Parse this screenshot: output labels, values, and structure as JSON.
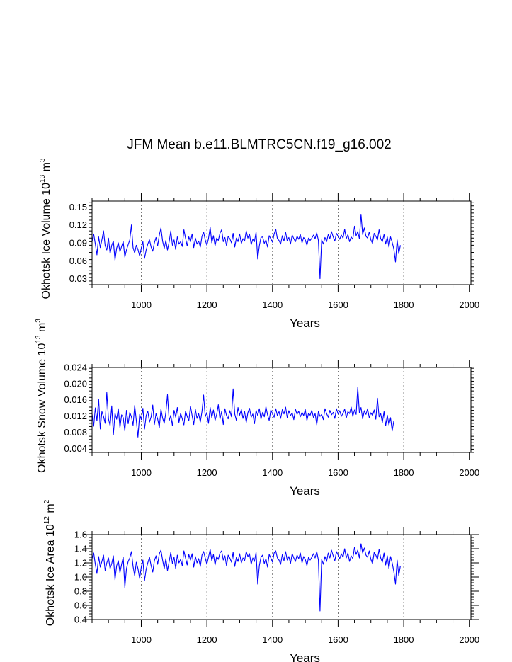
{
  "title": "JFM Mean b.e11.BLMTRC5CN.f19_g16.002",
  "colors": {
    "series": "#0000ff",
    "axis": "#000000",
    "grid": "#555555"
  },
  "chart_data": [
    {
      "type": "line",
      "ylabel": {
        "main": "Okhotsk Ice Volume 10",
        "exp": "13",
        "unit": " m",
        "unit_exp": "3"
      },
      "xlabel": "Years",
      "xlim": [
        850,
        2005
      ],
      "ylim": [
        0.02,
        0.16
      ],
      "xticks": [
        1000,
        1200,
        1400,
        1600,
        1800,
        2000
      ],
      "yticks": [
        0.03,
        0.06,
        0.09,
        0.12,
        0.15
      ],
      "ytick_labels": [
        "0.03",
        "0.06",
        "0.09",
        "0.12",
        "0.15"
      ],
      "grid_x": [
        1000,
        1200,
        1400,
        1600,
        1800
      ],
      "series": [
        {
          "name": "Okhotsk Ice Volume",
          "x_start": 850,
          "x_step": 5,
          "values": [
            0.092,
            0.105,
            0.088,
            0.07,
            0.1,
            0.082,
            0.095,
            0.11,
            0.085,
            0.078,
            0.098,
            0.072,
            0.086,
            0.093,
            0.061,
            0.081,
            0.09,
            0.075,
            0.084,
            0.092,
            0.066,
            0.078,
            0.087,
            0.095,
            0.12,
            0.082,
            0.073,
            0.086,
            0.079,
            0.068,
            0.081,
            0.092,
            0.064,
            0.078,
            0.088,
            0.095,
            0.083,
            0.076,
            0.09,
            0.099,
            0.085,
            0.103,
            0.115,
            0.093,
            0.081,
            0.094,
            0.078,
            0.092,
            0.11,
            0.086,
            0.095,
            0.079,
            0.1,
            0.088,
            0.092,
            0.084,
            0.112,
            0.098,
            0.085,
            0.1,
            0.092,
            0.105,
            0.082,
            0.098,
            0.088,
            0.093,
            0.083,
            0.101,
            0.108,
            0.095,
            0.086,
            0.097,
            0.116,
            0.09,
            0.102,
            0.085,
            0.098,
            0.094,
            0.106,
            0.112,
            0.092,
            0.099,
            0.085,
            0.101,
            0.097,
            0.09,
            0.106,
            0.083,
            0.098,
            0.092,
            0.105,
            0.089,
            0.097,
            0.093,
            0.11,
            0.098,
            0.105,
            0.087,
            0.096,
            0.092,
            0.108,
            0.063,
            0.085,
            0.099,
            0.1,
            0.089,
            0.095,
            0.083,
            0.102,
            0.097,
            0.091,
            0.105,
            0.113,
            0.097,
            0.094,
            0.088,
            0.102,
            0.093,
            0.108,
            0.093,
            0.099,
            0.088,
            0.103,
            0.097,
            0.092,
            0.101,
            0.096,
            0.104,
            0.09,
            0.099,
            0.095,
            0.086,
            0.098,
            0.094,
            0.098,
            0.103,
            0.097,
            0.107,
            0.094,
            0.03,
            0.095,
            0.088,
            0.099,
            0.092,
            0.104,
            0.097,
            0.109,
            0.1,
            0.093,
            0.106,
            0.101,
            0.096,
            0.103,
            0.098,
            0.113,
            0.097,
            0.104,
            0.092,
            0.1,
            0.096,
            0.118,
            0.102,
            0.109,
            0.097,
            0.138,
            0.104,
            0.115,
            0.101,
            0.098,
            0.108,
            0.095,
            0.089,
            0.106,
            0.101,
            0.095,
            0.112,
            0.097,
            0.092,
            0.104,
            0.088,
            0.1,
            0.083,
            0.1,
            0.091,
            0.08,
            0.058,
            0.095,
            0.072,
            0.086
          ]
        }
      ]
    },
    {
      "type": "line",
      "ylabel": {
        "main": "Okhotsk Snow Volume 10",
        "exp": "13",
        "unit": " m",
        "unit_exp": "3"
      },
      "xlabel": "Years",
      "xlim": [
        850,
        2005
      ],
      "ylim": [
        0.003,
        0.024
      ],
      "xticks": [
        1000,
        1200,
        1400,
        1600,
        1800,
        2000
      ],
      "yticks": [
        0.004,
        0.008,
        0.012,
        0.016,
        0.02,
        0.024
      ],
      "ytick_labels": [
        "0.004",
        "0.008",
        "0.012",
        "0.016",
        "0.020",
        "0.024"
      ],
      "grid_x": [
        1000,
        1200,
        1400,
        1600,
        1800
      ],
      "series": [
        {
          "name": "Okhotsk Snow Volume",
          "x_start": 850,
          "x_step": 5,
          "values": [
            0.0125,
            0.0095,
            0.014,
            0.0108,
            0.0162,
            0.0088,
            0.0131,
            0.0119,
            0.0102,
            0.0178,
            0.0113,
            0.0096,
            0.0145,
            0.0074,
            0.0127,
            0.0112,
            0.0138,
            0.0091,
            0.0123,
            0.0116,
            0.0083,
            0.0134,
            0.0101,
            0.0129,
            0.0118,
            0.0097,
            0.0146,
            0.0109,
            0.0068,
            0.0124,
            0.0111,
            0.0139,
            0.0088,
            0.0121,
            0.0132,
            0.0105,
            0.0118,
            0.0147,
            0.0099,
            0.0126,
            0.0113,
            0.0092,
            0.0137,
            0.0115,
            0.0102,
            0.0129,
            0.0173,
            0.0108,
            0.0122,
            0.0096,
            0.0134,
            0.0117,
            0.0141,
            0.0104,
            0.0127,
            0.0113,
            0.0098,
            0.0132,
            0.0119,
            0.0108,
            0.0144,
            0.0121,
            0.0099,
            0.0136,
            0.0114,
            0.0126,
            0.0105,
            0.0131,
            0.0172,
            0.0118,
            0.0129,
            0.0102,
            0.0141,
            0.0116,
            0.0135,
            0.0109,
            0.0124,
            0.0148,
            0.0112,
            0.0131,
            0.0099,
            0.0138,
            0.0121,
            0.0113,
            0.0133,
            0.0118,
            0.0187,
            0.0125,
            0.0109,
            0.0141,
            0.0122,
            0.0136,
            0.0114,
            0.0131,
            0.0104,
            0.0128,
            0.0139,
            0.0117,
            0.0125,
            0.0101,
            0.0134,
            0.0121,
            0.0138,
            0.0112,
            0.0129,
            0.0118,
            0.0143,
            0.0123,
            0.0109,
            0.0135,
            0.0126,
            0.0117,
            0.0138,
            0.0121,
            0.0131,
            0.0114,
            0.0136,
            0.0125,
            0.0142,
            0.0116,
            0.0133,
            0.0121,
            0.0128,
            0.0111,
            0.0137,
            0.0124,
            0.0132,
            0.0118,
            0.0129,
            0.0121,
            0.0136,
            0.0109,
            0.0127,
            0.0122,
            0.0134,
            0.0116,
            0.0126,
            0.0098,
            0.0131,
            0.0119,
            0.0124,
            0.0111,
            0.0138,
            0.0126,
            0.0117,
            0.0134,
            0.0123,
            0.0129,
            0.0114,
            0.0138,
            0.0125,
            0.0133,
            0.0119,
            0.0127,
            0.0137,
            0.0115,
            0.0131,
            0.0126,
            0.0142,
            0.0119,
            0.0135,
            0.0124,
            0.0191,
            0.0128,
            0.0141,
            0.0113,
            0.0133,
            0.0124,
            0.0138,
            0.0116,
            0.0128,
            0.0121,
            0.0135,
            0.0112,
            0.0164,
            0.0118,
            0.0126,
            0.0104,
            0.0131,
            0.0096,
            0.0122,
            0.0098,
            0.0116,
            0.0083,
            0.0108
          ]
        }
      ]
    },
    {
      "type": "line",
      "ylabel": {
        "main": "Okhotsk Ice Area 10",
        "exp": "12",
        "unit": " m",
        "unit_exp": "2"
      },
      "xlabel": "Years",
      "xlim": [
        850,
        2005
      ],
      "ylim": [
        0.4,
        1.6
      ],
      "xticks": [
        1000,
        1200,
        1400,
        1600,
        1800,
        2000
      ],
      "yticks": [
        0.4,
        0.6,
        0.8,
        1.0,
        1.2,
        1.4,
        1.6
      ],
      "ytick_labels": [
        "0.4",
        "0.6",
        "0.8",
        "1.0",
        "1.2",
        "1.4",
        "1.6"
      ],
      "grid_x": [
        1000,
        1200,
        1400,
        1600,
        1800
      ],
      "series": [
        {
          "name": "Okhotsk Ice Area",
          "x_start": 850,
          "x_step": 5,
          "values": [
            1.26,
            1.34,
            1.18,
            1.05,
            1.29,
            1.14,
            1.22,
            1.31,
            1.09,
            1.2,
            1.27,
            1.12,
            1.19,
            1.3,
            0.96,
            1.16,
            1.23,
            1.06,
            1.18,
            1.28,
            0.85,
            1.12,
            1.22,
            1.27,
            1.36,
            1.15,
            1.02,
            1.21,
            1.12,
            0.98,
            1.14,
            1.24,
            0.95,
            1.11,
            1.2,
            1.28,
            1.16,
            1.07,
            1.23,
            1.3,
            1.18,
            1.33,
            1.38,
            1.24,
            1.12,
            1.26,
            1.09,
            1.22,
            1.35,
            1.19,
            1.28,
            1.12,
            1.31,
            1.2,
            1.25,
            1.16,
            1.37,
            1.27,
            1.17,
            1.32,
            1.24,
            1.33,
            1.14,
            1.29,
            1.2,
            1.26,
            1.15,
            1.31,
            1.36,
            1.27,
            1.18,
            1.28,
            1.39,
            1.23,
            1.32,
            1.17,
            1.29,
            1.25,
            1.34,
            1.37,
            1.24,
            1.3,
            1.16,
            1.31,
            1.27,
            1.21,
            1.35,
            1.15,
            1.28,
            1.22,
            1.33,
            1.2,
            1.27,
            1.23,
            1.36,
            1.29,
            1.33,
            1.18,
            1.27,
            1.22,
            1.35,
            0.9,
            1.16,
            1.28,
            1.31,
            1.19,
            1.26,
            1.14,
            1.32,
            1.27,
            1.21,
            1.34,
            1.37,
            1.27,
            1.24,
            1.18,
            1.32,
            1.23,
            1.36,
            1.24,
            1.29,
            1.19,
            1.33,
            1.27,
            1.22,
            1.31,
            1.26,
            1.34,
            1.2,
            1.29,
            1.25,
            1.16,
            1.28,
            1.24,
            1.28,
            1.33,
            1.27,
            1.36,
            1.24,
            0.52,
            1.25,
            1.18,
            1.29,
            1.22,
            1.34,
            1.27,
            1.38,
            1.3,
            1.23,
            1.36,
            1.31,
            1.26,
            1.33,
            1.28,
            1.4,
            1.27,
            1.34,
            1.22,
            1.3,
            1.26,
            1.42,
            1.32,
            1.38,
            1.27,
            1.47,
            1.34,
            1.41,
            1.31,
            1.28,
            1.37,
            1.25,
            1.19,
            1.35,
            1.31,
            1.25,
            1.39,
            1.27,
            1.21,
            1.34,
            1.17,
            1.3,
            1.12,
            1.29,
            1.2,
            1.08,
            0.9,
            1.24,
            1.02,
            1.16
          ]
        }
      ]
    }
  ]
}
